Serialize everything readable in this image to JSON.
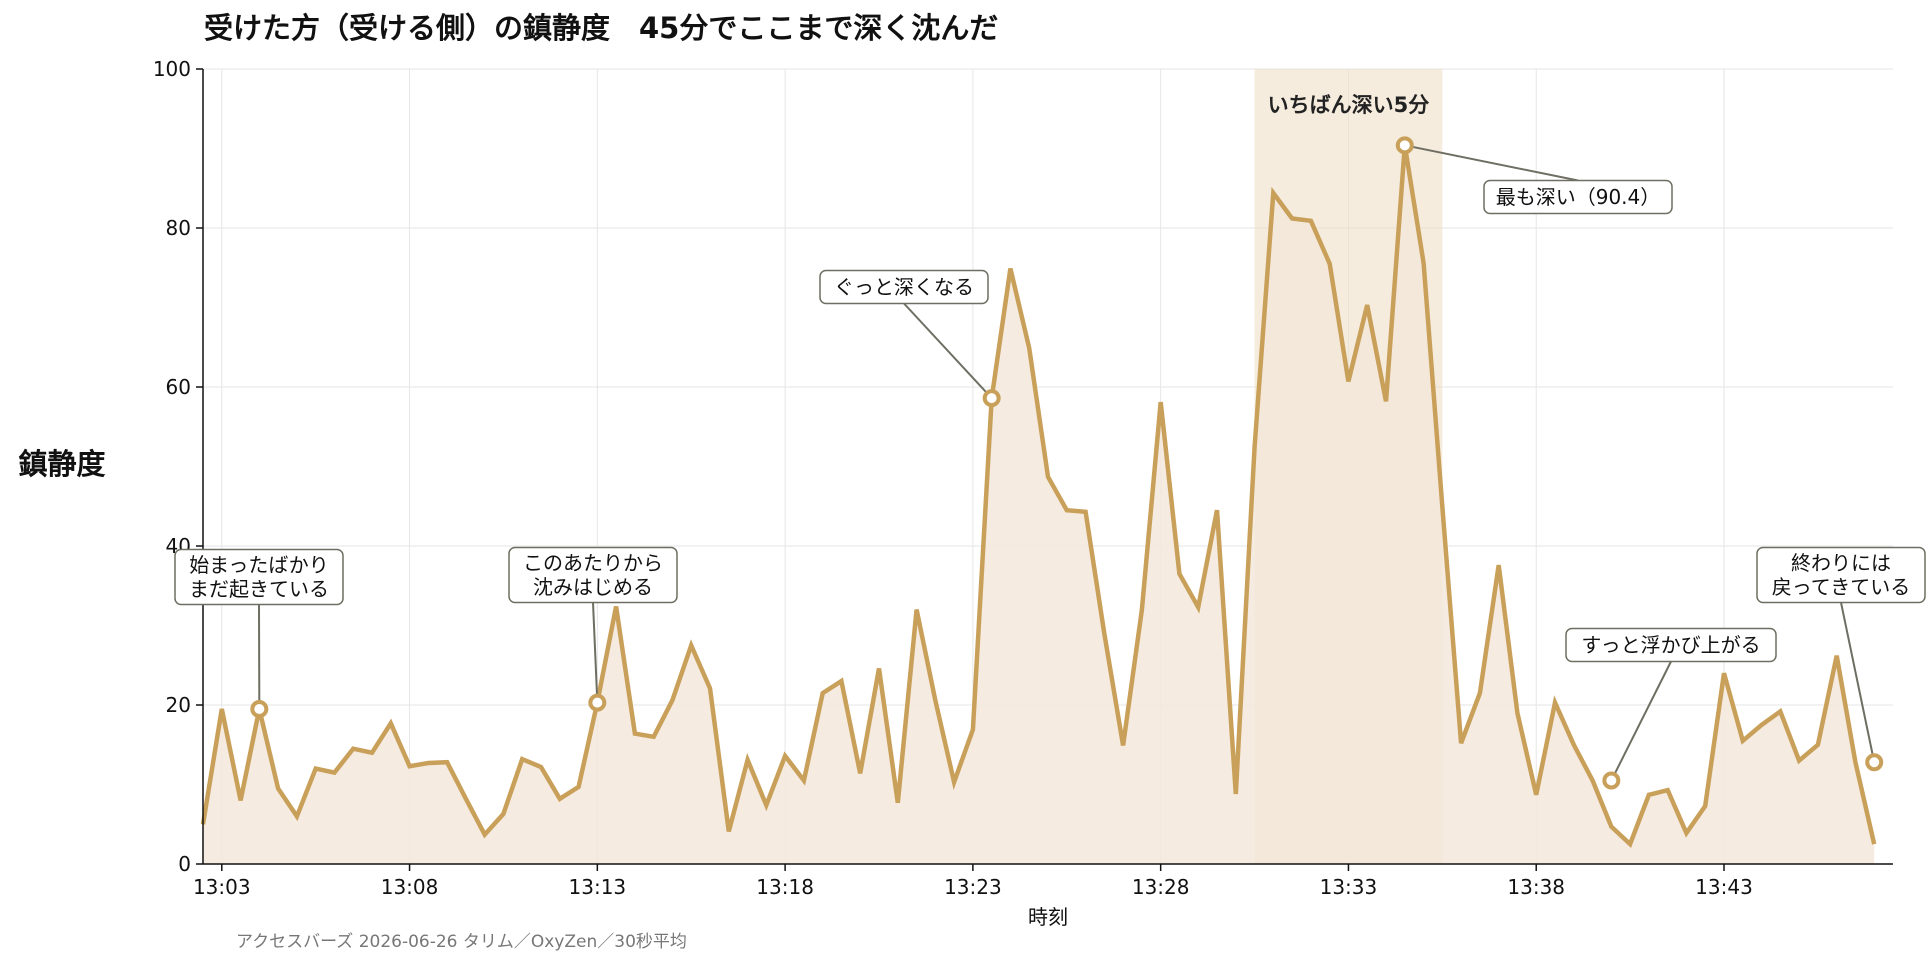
{
  "chart_data": {
    "type": "area",
    "title": "受けた方（受ける側）の鎮静度　45分でここまで深く沈んだ",
    "xlabel": "時刻",
    "ylabel": "鎮静度",
    "source": "アクセスバーズ 2026-06-26 タリム／OxyZen／30秒平均",
    "ylim": [
      0,
      100
    ],
    "yticks": [
      "0",
      "20",
      "40",
      "60",
      "80",
      "100"
    ],
    "xlim_minutes": [
      0,
      44.5
    ],
    "xticks": [
      {
        "m": 0,
        "label": "13:03"
      },
      {
        "m": 5,
        "label": "13:08"
      },
      {
        "m": 10,
        "label": "13:13"
      },
      {
        "m": 15,
        "label": "13:18"
      },
      {
        "m": 20,
        "label": "13:23"
      },
      {
        "m": 25,
        "label": "13:28"
      },
      {
        "m": 30,
        "label": "13:33"
      },
      {
        "m": 35,
        "label": "13:38"
      },
      {
        "m": 40,
        "label": "13:43"
      }
    ],
    "grid": true,
    "line_color": "#c9a05a",
    "fill_color": "#f3e8da",
    "highlight_color": "#ecdcc2",
    "series": [
      {
        "x_start_minute": -0.5,
        "x_step_minutes": 0.5,
        "values": [
          5,
          19.5,
          8,
          19.5,
          9.5,
          6,
          12,
          11.5,
          14.5,
          14,
          17.7,
          12.3,
          12.7,
          12.8,
          8.2,
          3.7,
          6.3,
          13.2,
          12.2,
          8.2,
          9.7,
          20.3,
          32.4,
          16.4,
          16,
          20.6,
          27.5,
          22.1,
          4.1,
          13.1,
          7.4,
          13.6,
          10.5,
          21.5,
          23,
          11.4,
          24.6,
          7.7,
          32,
          20.6,
          10.3,
          16.9,
          58.6,
          74.9,
          64.9,
          48.7,
          44.5,
          44.3,
          29,
          14.9,
          32,
          58.1,
          36.5,
          32.3,
          44.5,
          8.8,
          52.5,
          84.4,
          81.2,
          80.9,
          75.5,
          60.7,
          70.3,
          58.2,
          90.4,
          75.6,
          45,
          15.2,
          21.5,
          37.6,
          19,
          8.7,
          20.3,
          15,
          10.5,
          4.7,
          2.5,
          8.7,
          9.3,
          3.9,
          7.3,
          24,
          15.5,
          17.5,
          19.2,
          13,
          15,
          26.2,
          12.8,
          2.5
        ]
      }
    ],
    "highlight": {
      "x_range_minutes": [
        27.5,
        32.5
      ],
      "label": "いちばん深い5分"
    },
    "annotations": [
      {
        "x": 1,
        "y": 19.5,
        "lines": [
          "始まったばかり",
          "まだ起きている"
        ]
      },
      {
        "x": 10,
        "y": 20.3,
        "lines": [
          "このあたりから",
          "沈みはじめる"
        ]
      },
      {
        "x": 20.5,
        "y": 58.6,
        "lines": [
          "ぐっと深くなる"
        ]
      },
      {
        "x": 31.5,
        "y": 90.4,
        "lines": [
          "最も深い（90.4）"
        ]
      },
      {
        "x": 37,
        "y": 10.5,
        "lines": [
          "すっと浮かび上がる"
        ]
      },
      {
        "x": 44,
        "y": 12.8,
        "lines": [
          "終わりには",
          "戻ってきている"
        ]
      }
    ]
  }
}
